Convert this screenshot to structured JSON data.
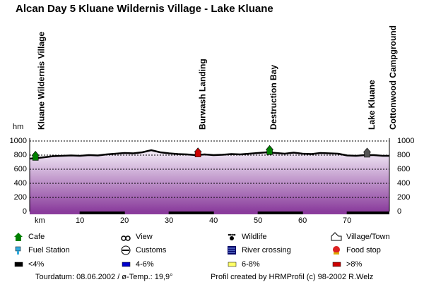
{
  "chart_data": {
    "type": "area",
    "title": "Alcan Day 5 Kluane Wildernis Village - Lake Kluane",
    "y_label": "hm",
    "x_label": "km",
    "x": [
      -1.3,
      0,
      2,
      4,
      6,
      8,
      10,
      12,
      14,
      16,
      18,
      20,
      22,
      24,
      26,
      28,
      30,
      32,
      34,
      36,
      38,
      40,
      42,
      44,
      46,
      48,
      50,
      52,
      54,
      56,
      58,
      60,
      62,
      64,
      66,
      68,
      70,
      72,
      74,
      76,
      78,
      79.5
    ],
    "values": [
      750,
      755,
      770,
      785,
      790,
      795,
      790,
      800,
      795,
      810,
      820,
      830,
      825,
      840,
      870,
      840,
      825,
      815,
      810,
      800,
      810,
      800,
      805,
      815,
      810,
      820,
      830,
      840,
      830,
      820,
      835,
      820,
      815,
      830,
      825,
      820,
      795,
      790,
      800,
      800,
      790,
      790
    ],
    "color": "#000000",
    "xlim": [
      -1.3,
      79.5
    ],
    "ylim": [
      0,
      1000
    ],
    "xticks": [
      10,
      20,
      30,
      40,
      50,
      60,
      70
    ],
    "yticks": [
      0,
      200,
      400,
      600,
      800,
      1000
    ],
    "grid": true,
    "places": [
      {
        "name": "Kluane Wildernis Village",
        "km": 0.8
      },
      {
        "name": "Burwash Landing",
        "km": 37
      },
      {
        "name": "Destruction Bay",
        "km": 53
      },
      {
        "name": "Lake Kluane",
        "km": 75
      },
      {
        "name": "Cottonwood Campground",
        "km": 79.8
      }
    ],
    "markers": [
      {
        "km": 0,
        "color": "#008000"
      },
      {
        "km": 36.5,
        "color": "#cc0000"
      },
      {
        "km": 52.6,
        "color": "#008000"
      },
      {
        "km": 74.5,
        "color": "#555555"
      }
    ],
    "legend": [
      {
        "label": "Cafe"
      },
      {
        "label": "View"
      },
      {
        "label": "Wildlife"
      },
      {
        "label": "Village/Town"
      },
      {
        "label": "Fuel Station"
      },
      {
        "label": "Customs"
      },
      {
        "label": "River crossing"
      },
      {
        "label": "Food stop"
      },
      {
        "label": "<4%",
        "color": "#000000"
      },
      {
        "label": "4-6%",
        "color": "#0000cc"
      },
      {
        "label": "6-8%",
        "color": "#ffff66"
      },
      {
        "label": ">8%",
        "color": "#cc0000"
      }
    ],
    "footer_left": "Tourdatum: 08.06.2002  /  ø-Temp.: 19,9°",
    "footer_right": "Profil created by HRMProfil (c) 98-2002 R.Welz"
  }
}
